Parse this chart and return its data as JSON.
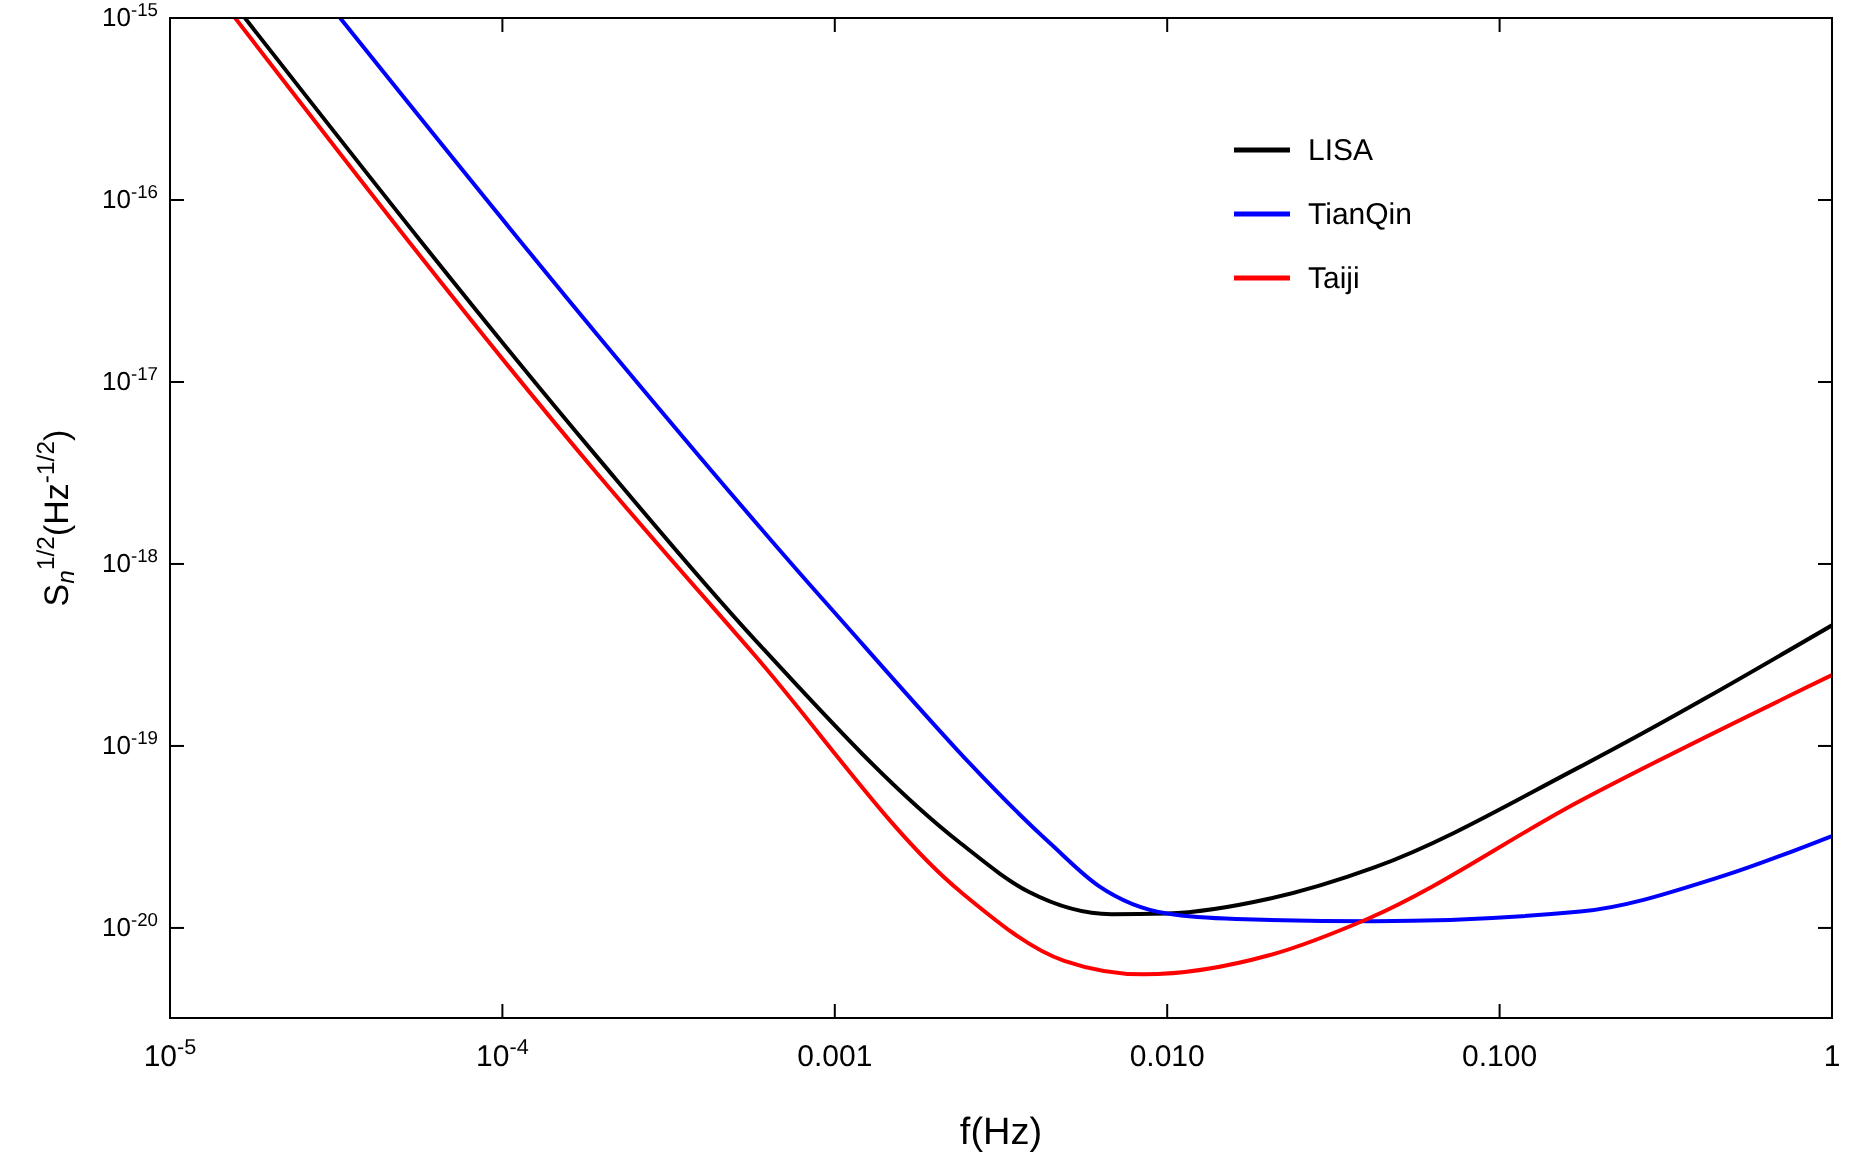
{
  "chart_data": {
    "type": "line",
    "xlabel": "f(Hz)",
    "ylabel": "S$_{n}$$^{1/2}$(Hz$^{-1/2}$)",
    "log": "xy",
    "grid": false,
    "legend": "top right",
    "line_style": "solid",
    "marker": "none",
    "xlim": [
      1e-05,
      1
    ],
    "ylim": [
      3.2e-21,
      1e-15
    ],
    "xticks": [
      {
        "value": 1e-05,
        "label": "10$^{-5}$"
      },
      {
        "value": 0.0001,
        "label": "10$^{-4}$"
      },
      {
        "value": 0.001,
        "label": "0.001"
      },
      {
        "value": 0.01,
        "label": "0.010"
      },
      {
        "value": 0.1,
        "label": "0.100"
      },
      {
        "value": 1,
        "label": "1"
      }
    ],
    "yticks": [
      {
        "value": 1e-20,
        "label": "10$^{-20}$"
      },
      {
        "value": 1e-19,
        "label": "10$^{-19}$"
      },
      {
        "value": 1e-18,
        "label": "10$^{-18}$"
      },
      {
        "value": 1e-17,
        "label": "10$^{-17}$"
      },
      {
        "value": 1e-16,
        "label": "10$^{-16}$"
      },
      {
        "value": 1e-15,
        "label": "10$^{-15}$"
      }
    ],
    "series": [
      {
        "name": "LISA",
        "color": "#000000",
        "x": [
          1.68e-05,
          0.000191,
          0.00057,
          0.00239,
          0.00383,
          0.0068,
          0.01,
          0.0204,
          0.042,
          0.175,
          1
        ],
        "values": [
          1e-15,
          3.95e-18,
          3.9e-19,
          2.92e-20,
          1.58e-20,
          1.19e-20,
          1.2e-20,
          1.45e-20,
          2.15e-20,
          7.7e-20,
          4.6e-19
        ]
      },
      {
        "name": "TianQin",
        "color": "#0000ff",
        "x": [
          3.25e-05,
          0.000191,
          0.00092,
          0.00446,
          0.0062,
          0.01,
          0.0161,
          0.042,
          0.175,
          0.458,
          1
        ],
        "values": [
          1e-15,
          1.86e-17,
          6.4e-19,
          2.9e-20,
          1.71e-20,
          1.2e-20,
          1.12e-20,
          1.09e-20,
          1.23e-20,
          1.9e-20,
          3.2e-20
        ]
      },
      {
        "name": "Taiji",
        "color": "#ff0000",
        "x": [
          1.57e-05,
          0.000191,
          0.00057,
          0.00239,
          0.0049,
          0.0085,
          0.0204,
          0.04,
          0.175,
          1
        ],
        "values": [
          1e-15,
          3.2e-18,
          3.2e-19,
          1.58e-20,
          6.6e-21,
          5.56e-21,
          7.1e-21,
          1.12e-20,
          5e-20,
          2.45e-19
        ]
      }
    ]
  }
}
